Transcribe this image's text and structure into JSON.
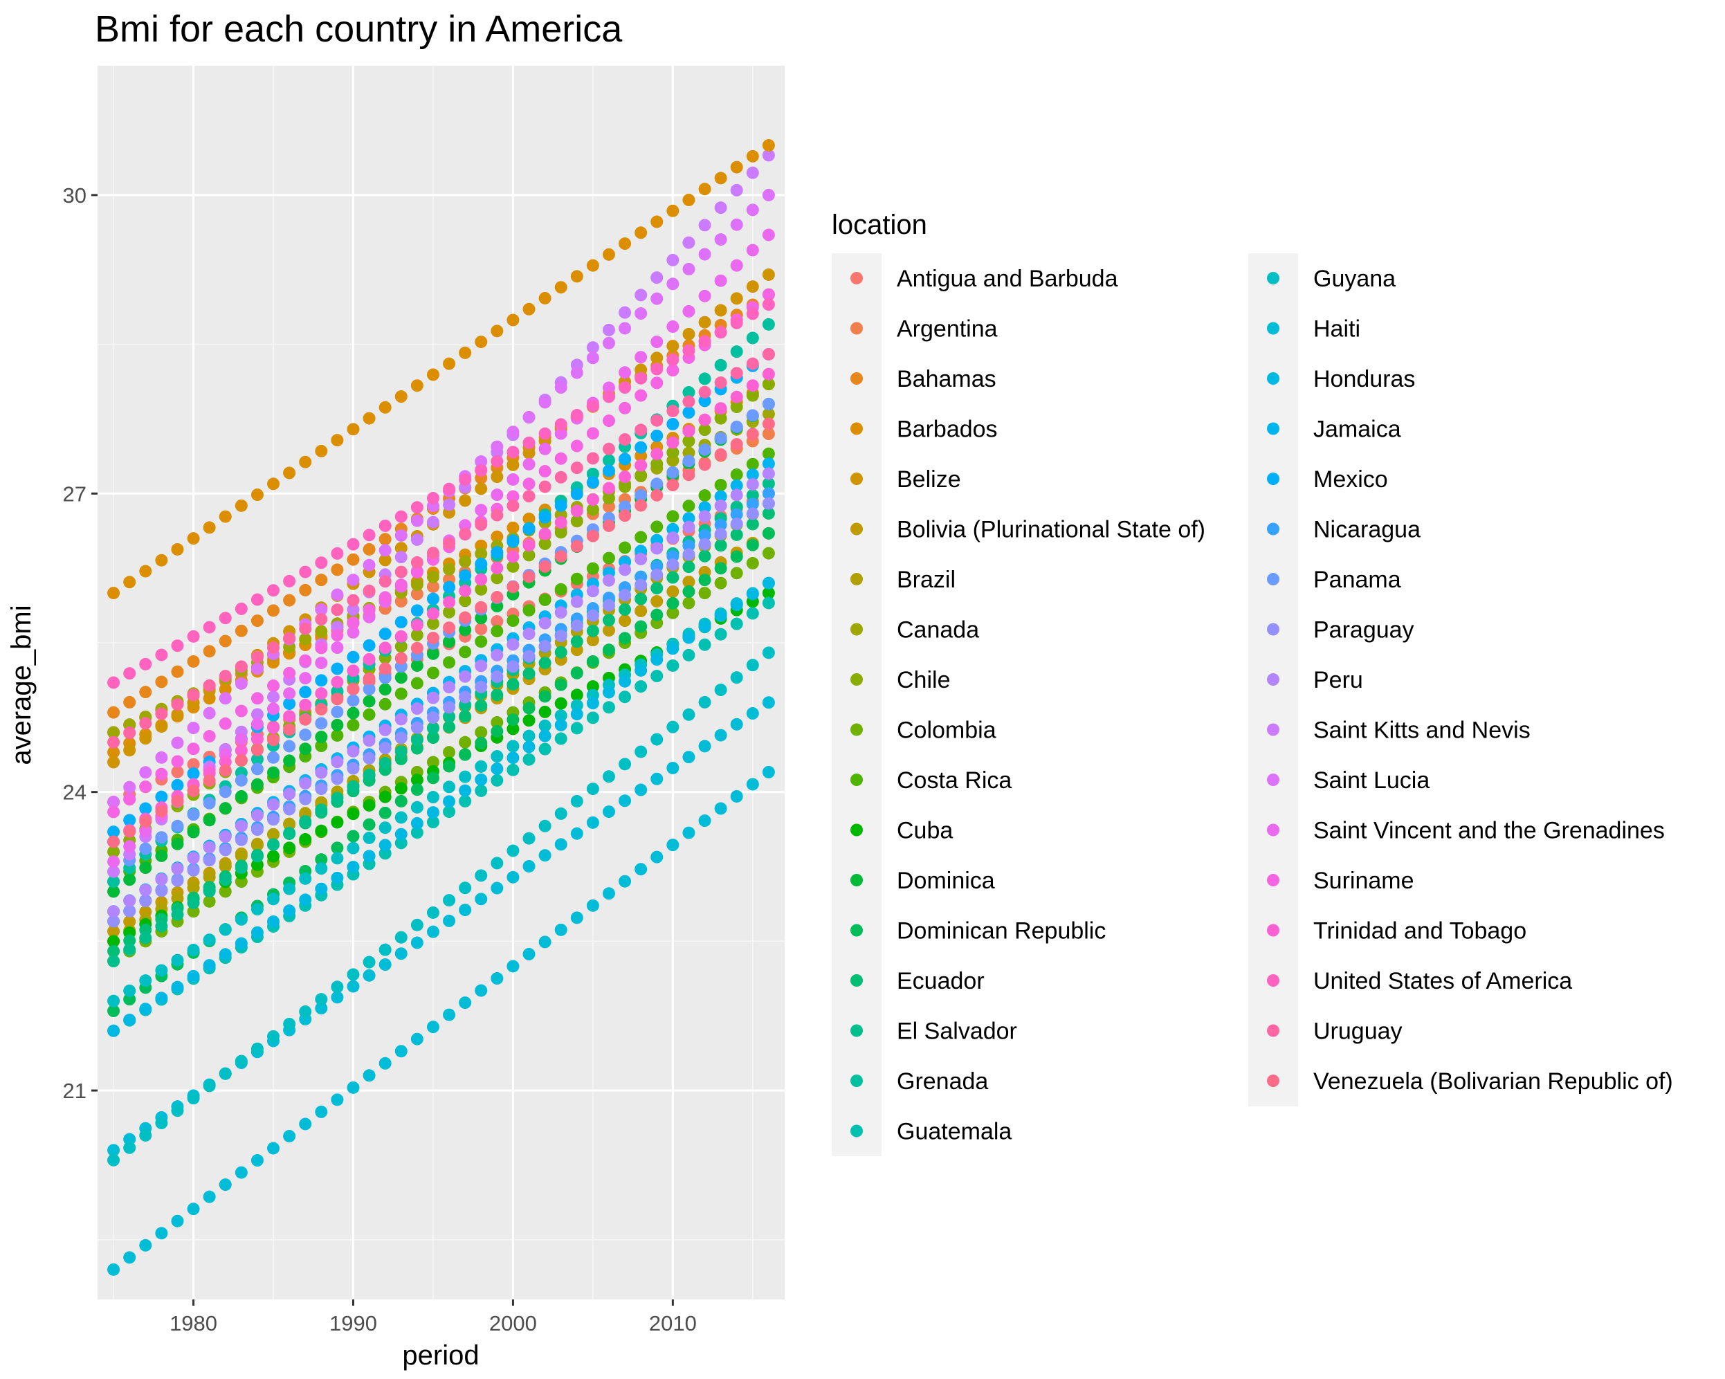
{
  "chart_data": {
    "type": "scatter",
    "title": "Bmi for each country in America",
    "xlabel": "period",
    "ylabel": "average_bmi",
    "xlim": [
      1974,
      2017
    ],
    "ylim": [
      18.9,
      31.3
    ],
    "x_ticks": [
      1980,
      1990,
      2000,
      2010
    ],
    "x_tick_labels": [
      "1980",
      "1990",
      "2000",
      "2010"
    ],
    "y_ticks": [
      21,
      24,
      27,
      30
    ],
    "y_tick_labels": [
      "21",
      "24",
      "27",
      "30"
    ],
    "grid": true,
    "legend": {
      "title": "location",
      "placement": "right",
      "columns": 2
    },
    "x_start": 1975,
    "x_end": 2016,
    "note_values": "Each series has one point per year 1975-2016; values are linearly interpolated between start (1975) and end (2016) as read from the chart.",
    "series": [
      {
        "name": "Antigua and Barbuda",
        "color": "#F8766D",
        "start": 23.9,
        "end": 27.0
      },
      {
        "name": "Argentina",
        "color": "#F07F4C",
        "start": 24.6,
        "end": 27.6
      },
      {
        "name": "Bahamas",
        "color": "#E7861B",
        "start": 24.8,
        "end": 29.0
      },
      {
        "name": "Barbados",
        "color": "#DB8E00",
        "start": 24.4,
        "end": 28.1
      },
      {
        "name": "Belize",
        "color": "#CF9400",
        "start": 24.3,
        "end": 29.2
      },
      {
        "name": "Bolivia (Plurinational State of)",
        "color": "#C09B00",
        "start": 22.6,
        "end": 26.6
      },
      {
        "name": "Brazil",
        "color": "#B0A100",
        "start": 22.5,
        "end": 26.9
      },
      {
        "name": "Canada",
        "color": "#9EA700",
        "start": 24.6,
        "end": 27.8
      },
      {
        "name": "Chile",
        "color": "#89AC00",
        "start": 23.4,
        "end": 28.1
      },
      {
        "name": "Colombia",
        "color": "#70B000",
        "start": 22.3,
        "end": 26.4
      },
      {
        "name": "Costa Rica",
        "color": "#4FB400",
        "start": 23.1,
        "end": 27.4
      },
      {
        "name": "Cuba",
        "color": "#00B700",
        "start": 22.5,
        "end": 26.0
      },
      {
        "name": "Dominica",
        "color": "#00BA38",
        "start": 23.0,
        "end": 27.9
      },
      {
        "name": "Dominican Republic",
        "color": "#00BC59",
        "start": 21.8,
        "end": 26.6
      },
      {
        "name": "Ecuador",
        "color": "#00BE73",
        "start": 22.4,
        "end": 26.8
      },
      {
        "name": "El Salvador",
        "color": "#00BF8A",
        "start": 22.3,
        "end": 27.1
      },
      {
        "name": "Grenada",
        "color": "#00C09F",
        "start": 23.1,
        "end": 28.7
      },
      {
        "name": "Guatemala",
        "color": "#00C0B2",
        "start": 21.6,
        "end": 25.9
      },
      {
        "name": "Guyana",
        "color": "#00BFC4",
        "start": 21.9,
        "end": 26.1
      },
      {
        "name": "Haiti",
        "color": "#00BCD6",
        "start": 20.4,
        "end": 24.9
      },
      {
        "name": "Honduras",
        "color": "#00B9E3",
        "start": 21.6,
        "end": 26.1
      },
      {
        "name": "Jamaica",
        "color": "#00B4EF",
        "start": 22.8,
        "end": 27.3
      },
      {
        "name": "Mexico",
        "color": "#00AEFA",
        "start": 23.6,
        "end": 28.4
      },
      {
        "name": "Nicaragua",
        "color": "#35A2FF",
        "start": 22.7,
        "end": 27.0
      },
      {
        "name": "Panama",
        "color": "#6C9BFF",
        "start": 23.2,
        "end": 27.9
      },
      {
        "name": "Paraguay",
        "color": "#9590FF",
        "start": 22.7,
        "end": 26.9
      },
      {
        "name": "Peru",
        "color": "#B385FF",
        "start": 22.8,
        "end": 27.2
      },
      {
        "name": "Saint Kitts and Nevis",
        "color": "#CA7BFF",
        "start": 23.2,
        "end": 30.4
      },
      {
        "name": "Saint Lucia",
        "color": "#DD71FA",
        "start": 23.9,
        "end": 30.0
      },
      {
        "name": "Saint Vincent and the Grenadines",
        "color": "#EB69EF",
        "start": 23.3,
        "end": 29.6
      },
      {
        "name": "Suriname",
        "color": "#F564E3",
        "start": 23.8,
        "end": 29.0
      },
      {
        "name": "Trinidad and Tobago",
        "color": "#FC61D3",
        "start": 23.5,
        "end": 28.2
      },
      {
        "name": "United States of America",
        "color": "#FF62BF",
        "start": 25.1,
        "end": 28.9
      },
      {
        "name": "Uruguay",
        "color": "#FF67A4",
        "start": 24.5,
        "end": 28.4
      },
      {
        "name": "Venezuela (Bolivarian Republic of)",
        "color": "#FD6C87",
        "start": 23.5,
        "end": 27.7
      }
    ],
    "extra_series_note": "Highest and lowest visible trajectories",
    "extra_series": [
      {
        "name": "Barbados",
        "color": "#DB8E00",
        "start": 26.0,
        "end": 30.5
      },
      {
        "name": "Haiti",
        "color": "#00BCD6",
        "start": 19.2,
        "end": 24.2
      },
      {
        "name": "Guyana",
        "color": "#00BFC4",
        "start": 20.3,
        "end": 25.4
      }
    ]
  }
}
